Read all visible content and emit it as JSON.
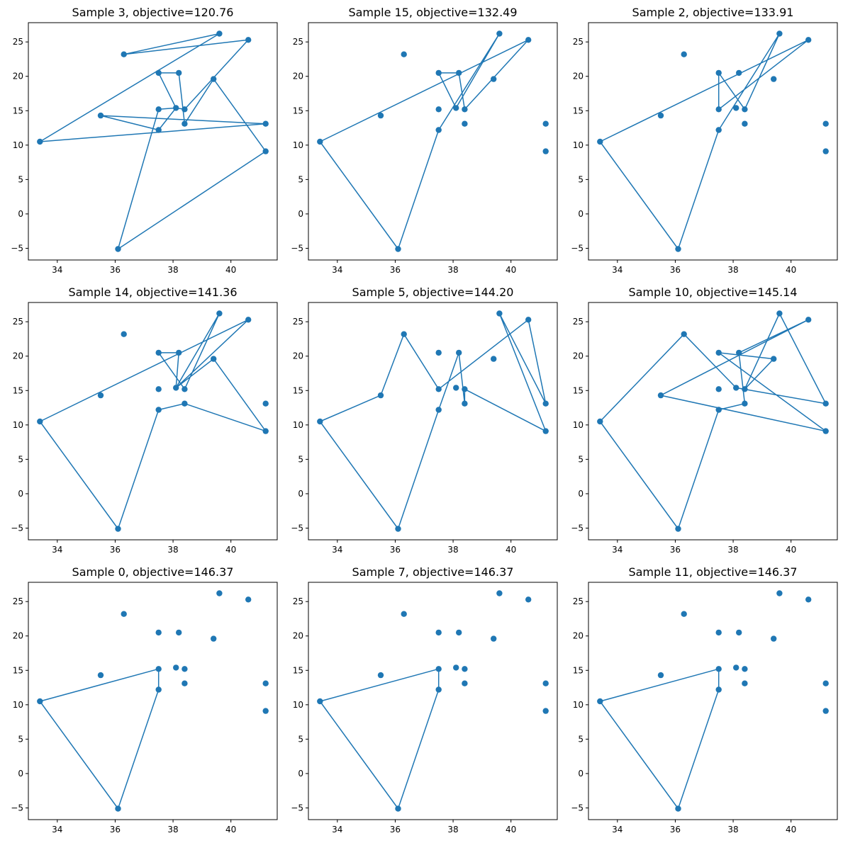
{
  "colors": {
    "series": "#1f77b4",
    "axes": "#000000",
    "background": "#ffffff"
  },
  "points": [
    [
      37.5,
      12.2
    ],
    [
      38.4,
      13.1
    ],
    [
      41.2,
      13.1
    ],
    [
      41.2,
      9.1
    ],
    [
      36.1,
      -5.1
    ],
    [
      33.4,
      10.5
    ],
    [
      35.5,
      14.3
    ],
    [
      37.5,
      15.2
    ],
    [
      38.1,
      15.4
    ],
    [
      38.4,
      15.2
    ],
    [
      36.3,
      23.2
    ],
    [
      37.5,
      20.5
    ],
    [
      38.2,
      20.5
    ],
    [
      39.4,
      19.6
    ],
    [
      39.6,
      26.2
    ],
    [
      40.6,
      25.3
    ]
  ],
  "chart_data": [
    {
      "type": "line",
      "title": "Sample 3, objective=120.76",
      "xlabel": "",
      "ylabel": "",
      "xlim": [
        33.0,
        41.6
      ],
      "ylim": [
        -6.7,
        27.8
      ],
      "xticks": [
        34,
        36,
        38,
        40
      ],
      "yticks": [
        -5,
        0,
        5,
        10,
        15,
        20,
        25
      ],
      "grid": false,
      "marker": "circle",
      "route": [
        4,
        7,
        8,
        0,
        6,
        2,
        5,
        14,
        10,
        15,
        9,
        8,
        11,
        12,
        1,
        13,
        3,
        4
      ]
    },
    {
      "type": "line",
      "title": "Sample 15, objective=132.49",
      "xlabel": "",
      "ylabel": "",
      "xlim": [
        33.0,
        41.6
      ],
      "ylim": [
        -6.7,
        27.8
      ],
      "xticks": [
        34,
        36,
        38,
        40
      ],
      "yticks": [
        -5,
        0,
        5,
        10,
        15,
        20,
        25
      ],
      "grid": false,
      "marker": "circle",
      "route": [
        4,
        0,
        14,
        8,
        11,
        12,
        9,
        15,
        5,
        4
      ]
    },
    {
      "type": "line",
      "title": "Sample 2, objective=133.91",
      "xlabel": "",
      "ylabel": "",
      "xlim": [
        33.0,
        41.6
      ],
      "ylim": [
        -6.7,
        27.8
      ],
      "xticks": [
        34,
        36,
        38,
        40
      ],
      "yticks": [
        -5,
        0,
        5,
        10,
        15,
        20,
        25
      ],
      "grid": false,
      "marker": "circle",
      "route": [
        4,
        0,
        14,
        9,
        11,
        7,
        15,
        5,
        4
      ]
    },
    {
      "type": "line",
      "title": "Sample 14, objective=141.36",
      "xlabel": "",
      "ylabel": "",
      "xlim": [
        33.0,
        41.6
      ],
      "ylim": [
        -6.7,
        27.8
      ],
      "xticks": [
        34,
        36,
        38,
        40
      ],
      "yticks": [
        -5,
        0,
        5,
        10,
        15,
        20,
        25
      ],
      "grid": false,
      "marker": "circle",
      "route": [
        4,
        0,
        1,
        3,
        13,
        8,
        14,
        9,
        11,
        12,
        8,
        15,
        5,
        4
      ]
    },
    {
      "type": "line",
      "title": "Sample 5, objective=144.20",
      "xlabel": "",
      "ylabel": "",
      "xlim": [
        33.0,
        41.6
      ],
      "ylim": [
        -6.7,
        27.8
      ],
      "xticks": [
        34,
        36,
        38,
        40
      ],
      "yticks": [
        -5,
        0,
        5,
        10,
        15,
        20,
        25
      ],
      "grid": false,
      "marker": "circle",
      "route": [
        4,
        0,
        12,
        1,
        9,
        3,
        14,
        2,
        15,
        7,
        10,
        6,
        5,
        4
      ]
    },
    {
      "type": "line",
      "title": "Sample 10, objective=145.14",
      "xlabel": "",
      "ylabel": "",
      "xlim": [
        33.0,
        41.6
      ],
      "ylim": [
        -6.7,
        27.8
      ],
      "xticks": [
        34,
        36,
        38,
        40
      ],
      "yticks": [
        -5,
        0,
        5,
        10,
        15,
        20,
        25
      ],
      "grid": false,
      "marker": "circle",
      "route": [
        4,
        0,
        1,
        12,
        15,
        6,
        3,
        11,
        13,
        9,
        14,
        2,
        8,
        10,
        5,
        4
      ]
    },
    {
      "type": "line",
      "title": "Sample 0, objective=146.37",
      "xlabel": "",
      "ylabel": "",
      "xlim": [
        33.0,
        41.6
      ],
      "ylim": [
        -6.7,
        27.8
      ],
      "xticks": [
        34,
        36,
        38,
        40
      ],
      "yticks": [
        -5,
        0,
        5,
        10,
        15,
        20,
        25
      ],
      "grid": false,
      "marker": "circle",
      "route": [
        4,
        0,
        7,
        5,
        4
      ]
    },
    {
      "type": "line",
      "title": "Sample 7, objective=146.37",
      "xlabel": "",
      "ylabel": "",
      "xlim": [
        33.0,
        41.6
      ],
      "ylim": [
        -6.7,
        27.8
      ],
      "xticks": [
        34,
        36,
        38,
        40
      ],
      "yticks": [
        -5,
        0,
        5,
        10,
        15,
        20,
        25
      ],
      "grid": false,
      "marker": "circle",
      "route": [
        4,
        0,
        7,
        5,
        4
      ]
    },
    {
      "type": "line",
      "title": "Sample 11, objective=146.37",
      "xlabel": "",
      "ylabel": "",
      "xlim": [
        33.0,
        41.6
      ],
      "ylim": [
        -6.7,
        27.8
      ],
      "xticks": [
        34,
        36,
        38,
        40
      ],
      "yticks": [
        -5,
        0,
        5,
        10,
        15,
        20,
        25
      ],
      "grid": false,
      "marker": "circle",
      "route": [
        4,
        0,
        7,
        5,
        4
      ]
    }
  ]
}
